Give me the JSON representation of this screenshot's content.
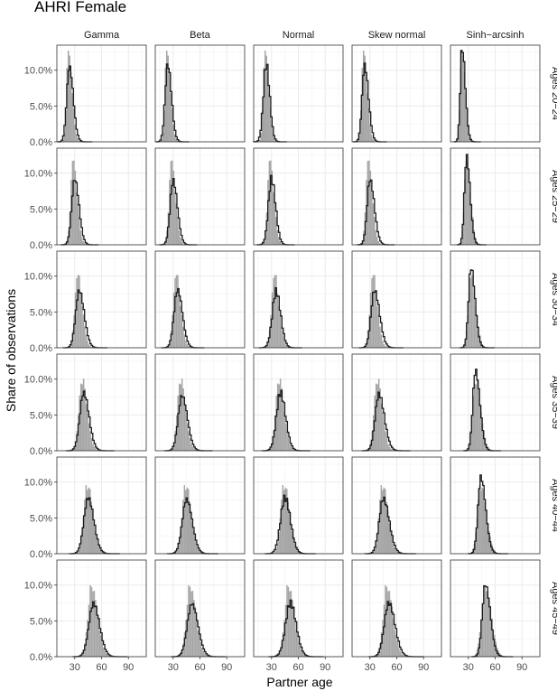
{
  "chart_data": {
    "type": "histogram-facet",
    "title": "AHRI Female",
    "xlabel": "Partner age",
    "ylabel": "Share of observations",
    "columns": [
      "Gamma",
      "Beta",
      "Normal",
      "Skew normal",
      "Sinh−arcsinh"
    ],
    "rows": [
      "Ages 20−24",
      "Ages 25−29",
      "Ages 30−34",
      "Ages 35−39",
      "Ages 40−44",
      "Ages 45−49"
    ],
    "xlim": [
      10,
      110
    ],
    "xticks": [
      30,
      60,
      90
    ],
    "xtick_labels": [
      "30",
      "60",
      "90"
    ],
    "ylim": [
      0,
      0.135
    ],
    "yticks": [
      0,
      0.05,
      0.1
    ],
    "ytick_labels": [
      "0.0%",
      "5.0%",
      "10.0%"
    ],
    "grid": true,
    "colors": {
      "observed": "#a6a6a6",
      "fitted": "#1a1a1a",
      "panel_border": "#333333",
      "grid": "#ebebeb",
      "strip_bg": "#ffffff"
    },
    "observed": [
      {
        "mode": 23,
        "peak": 0.128,
        "sd_left": 2.2,
        "sd_right": 4.0
      },
      {
        "mode": 28,
        "peak": 0.118,
        "sd_left": 2.6,
        "sd_right": 4.6
      },
      {
        "mode": 33,
        "peak": 0.103,
        "sd_left": 3.0,
        "sd_right": 5.2
      },
      {
        "mode": 38,
        "peak": 0.1,
        "sd_left": 3.4,
        "sd_right": 5.8
      },
      {
        "mode": 44,
        "peak": 0.097,
        "sd_left": 3.8,
        "sd_right": 6.2
      },
      {
        "mode": 49,
        "peak": 0.099,
        "sd_left": 4.2,
        "sd_right": 6.6
      }
    ],
    "fitted": [
      [
        {
          "mode": 24,
          "peak": 0.105,
          "sd_left": 3.0,
          "sd_right": 4.4
        },
        {
          "mode": 24,
          "peak": 0.108,
          "sd_left": 3.0,
          "sd_right": 4.2
        },
        {
          "mode": 24,
          "peak": 0.108,
          "sd_left": 3.2,
          "sd_right": 4.0
        },
        {
          "mode": 24,
          "peak": 0.107,
          "sd_left": 2.8,
          "sd_right": 4.4
        },
        {
          "mode": 23,
          "peak": 0.132,
          "sd_left": 2.0,
          "sd_right": 3.6
        }
      ],
      [
        {
          "mode": 30,
          "peak": 0.092,
          "sd_left": 3.4,
          "sd_right": 4.8
        },
        {
          "mode": 30,
          "peak": 0.09,
          "sd_left": 3.4,
          "sd_right": 4.8
        },
        {
          "mode": 30,
          "peak": 0.092,
          "sd_left": 3.6,
          "sd_right": 4.6
        },
        {
          "mode": 30,
          "peak": 0.091,
          "sd_left": 3.2,
          "sd_right": 5.0
        },
        {
          "mode": 28,
          "peak": 0.123,
          "sd_left": 2.4,
          "sd_right": 4.0
        }
      ],
      [
        {
          "mode": 35,
          "peak": 0.08,
          "sd_left": 4.0,
          "sd_right": 5.6
        },
        {
          "mode": 35,
          "peak": 0.081,
          "sd_left": 4.0,
          "sd_right": 5.4
        },
        {
          "mode": 35,
          "peak": 0.079,
          "sd_left": 4.2,
          "sd_right": 5.2
        },
        {
          "mode": 35,
          "peak": 0.08,
          "sd_left": 3.8,
          "sd_right": 5.8
        },
        {
          "mode": 33,
          "peak": 0.112,
          "sd_left": 2.8,
          "sd_right": 4.6
        }
      ],
      [
        {
          "mode": 40,
          "peak": 0.081,
          "sd_left": 4.4,
          "sd_right": 6.0
        },
        {
          "mode": 40,
          "peak": 0.077,
          "sd_left": 4.4,
          "sd_right": 6.0
        },
        {
          "mode": 40,
          "peak": 0.081,
          "sd_left": 4.6,
          "sd_right": 5.8
        },
        {
          "mode": 40,
          "peak": 0.079,
          "sd_left": 4.2,
          "sd_right": 6.2
        },
        {
          "mode": 38,
          "peak": 0.112,
          "sd_left": 3.0,
          "sd_right": 5.0
        }
      ],
      [
        {
          "mode": 45,
          "peak": 0.078,
          "sd_left": 4.8,
          "sd_right": 6.4
        },
        {
          "mode": 45,
          "peak": 0.076,
          "sd_left": 4.8,
          "sd_right": 6.4
        },
        {
          "mode": 45,
          "peak": 0.078,
          "sd_left": 5.0,
          "sd_right": 6.2
        },
        {
          "mode": 45,
          "peak": 0.077,
          "sd_left": 4.6,
          "sd_right": 6.6
        },
        {
          "mode": 44,
          "peak": 0.107,
          "sd_left": 3.2,
          "sd_right": 5.4
        }
      ],
      [
        {
          "mode": 51,
          "peak": 0.074,
          "sd_left": 5.2,
          "sd_right": 6.8
        },
        {
          "mode": 51,
          "peak": 0.074,
          "sd_left": 5.2,
          "sd_right": 6.8
        },
        {
          "mode": 51,
          "peak": 0.075,
          "sd_left": 5.4,
          "sd_right": 6.6
        },
        {
          "mode": 51,
          "peak": 0.075,
          "sd_left": 5.0,
          "sd_right": 7.0
        },
        {
          "mode": 49,
          "peak": 0.101,
          "sd_left": 3.4,
          "sd_right": 5.6
        }
      ]
    ]
  }
}
